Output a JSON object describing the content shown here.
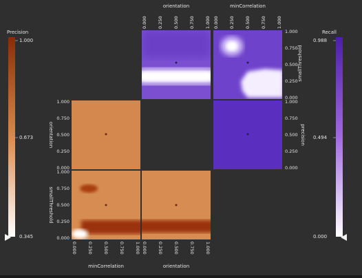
{
  "chart_data": {
    "type": "heatmap",
    "title": "",
    "matrix_variables": [
      "orientation",
      "minCorrelation",
      "smallThreshold"
    ],
    "tick_labels": [
      "0.000",
      "0.250",
      "0.500",
      "0.750",
      "1.000"
    ],
    "top_axis_labels": [
      "orientation",
      "minCorrelation"
    ],
    "bottom_axis_labels": [
      "minCorrelation",
      "orientation"
    ],
    "right_axis_labels": [
      "smallThreshold",
      "precision"
    ],
    "left_axis_labels": [
      "orientation",
      "smallThreshold"
    ],
    "colorbars": [
      {
        "name": "Precision",
        "min": 0.345,
        "mid": 0.673,
        "max": 1.0,
        "min_label": "0.345",
        "mid_label": "0.673",
        "max_label": "1.000",
        "placement": "left",
        "colors": [
          "#ffffff",
          "#d98a4f",
          "#8b2a0c"
        ]
      },
      {
        "name": "Recall",
        "min": 0.0,
        "mid": 0.494,
        "max": 0.988,
        "min_label": "0.000",
        "mid_label": "0.494",
        "max_label": "0.988",
        "placement": "right",
        "colors": [
          "#ffffff",
          "#a06ae0",
          "#4b1fa6"
        ]
      }
    ],
    "panels": [
      {
        "id": "recall-orientation-smallthreshold",
        "metric": "Recall",
        "x": "orientation",
        "y": "smallThreshold",
        "features": [
          {
            "kind": "band",
            "y": [
              0.1,
              0.32
            ],
            "x": [
              0.0,
              1.0
            ],
            "value": 0.05
          }
        ]
      },
      {
        "id": "recall-mincorrelation-smallthreshold",
        "metric": "Recall",
        "x": "minCorrelation",
        "y": "smallThreshold",
        "features": [
          {
            "kind": "blob",
            "x": 0.28,
            "y": 0.78,
            "value": 0.0
          },
          {
            "kind": "blob",
            "x": 0.82,
            "y": 0.22,
            "value": 0.05
          }
        ]
      },
      {
        "id": "recall-precision-column",
        "metric": "Recall",
        "x": "minCorrelation",
        "y": "precision",
        "features": [
          {
            "kind": "uniform",
            "value": 0.95
          }
        ]
      },
      {
        "id": "precision-orientation-panel",
        "metric": "Precision",
        "x": "minCorrelation",
        "y": "orientation",
        "features": [
          {
            "kind": "uniform",
            "value": 0.68
          }
        ]
      },
      {
        "id": "precision-mincorrelation-smallthreshold",
        "metric": "Precision",
        "x": "minCorrelation",
        "y": "smallThreshold",
        "features": [
          {
            "kind": "blob",
            "x": 0.15,
            "y": 0.72,
            "value": 0.95
          },
          {
            "kind": "band",
            "y": [
              0.08,
              0.24
            ],
            "x": [
              0.2,
              1.0
            ],
            "value": 0.97
          },
          {
            "kind": "blob",
            "x": 0.08,
            "y": 0.05,
            "value": 0.35
          }
        ]
      },
      {
        "id": "precision-orientation-smallthreshold",
        "metric": "Precision",
        "x": "orientation",
        "y": "smallThreshold",
        "features": [
          {
            "kind": "band",
            "y": [
              0.1,
              0.26
            ],
            "x": [
              0.0,
              1.0
            ],
            "value": 0.97
          }
        ]
      }
    ]
  }
}
